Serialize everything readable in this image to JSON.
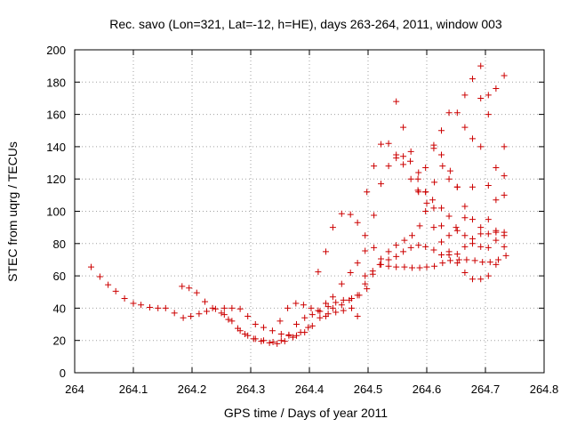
{
  "chart_data": {
    "type": "scatter",
    "title": "Rec. savo (Lon=321, Lat=-12, h=HE), days 263-264, 2011, window 003",
    "xlabel": "GPS time / Days of year 2011",
    "ylabel": "STEC from uqrg / TECUs",
    "xlim": [
      264,
      264.8
    ],
    "ylim": [
      0,
      200
    ],
    "grid": true,
    "marker": "+",
    "color": "#cc0000",
    "xticks": [
      264,
      264.1,
      264.2,
      264.3,
      264.4,
      264.5,
      264.6,
      264.7,
      264.8
    ],
    "xtick_labels": [
      "264",
      "264.1",
      "264.2",
      "264.3",
      "264.4",
      "264.5",
      "264.6",
      "264.7",
      "264.8"
    ],
    "yticks": [
      0,
      20,
      40,
      60,
      80,
      100,
      120,
      140,
      160,
      180,
      200
    ],
    "ytick_labels": [
      "0",
      "20",
      "40",
      "60",
      "80",
      "100",
      "120",
      "140",
      "160",
      "180",
      "200"
    ],
    "points": [
      [
        264.028,
        65.5
      ],
      [
        264.043,
        59.5
      ],
      [
        264.057,
        54.5
      ],
      [
        264.07,
        50.5
      ],
      [
        264.085,
        46
      ],
      [
        264.1,
        43
      ],
      [
        264.113,
        42
      ],
      [
        264.128,
        40.5
      ],
      [
        264.142,
        40
      ],
      [
        264.155,
        40
      ],
      [
        264.17,
        37
      ],
      [
        264.183,
        53.5
      ],
      [
        264.195,
        52.5
      ],
      [
        264.208,
        49.5
      ],
      [
        264.222,
        44
      ],
      [
        264.235,
        40
      ],
      [
        264.25,
        37
      ],
      [
        264.262,
        33
      ],
      [
        264.278,
        27.5
      ],
      [
        264.29,
        24
      ],
      [
        264.305,
        21
      ],
      [
        264.318,
        19.5
      ],
      [
        264.332,
        18.5
      ],
      [
        264.345,
        18
      ],
      [
        264.358,
        19.5
      ],
      [
        264.372,
        22
      ],
      [
        264.385,
        25
      ],
      [
        264.398,
        28
      ],
      [
        264.185,
        34
      ],
      [
        264.198,
        35
      ],
      [
        264.212,
        36.5
      ],
      [
        264.225,
        38
      ],
      [
        264.24,
        39.5
      ],
      [
        264.255,
        40
      ],
      [
        264.268,
        40
      ],
      [
        264.282,
        39.5
      ],
      [
        264.295,
        35
      ],
      [
        264.308,
        30
      ],
      [
        264.322,
        28
      ],
      [
        264.337,
        26
      ],
      [
        264.352,
        24
      ],
      [
        264.365,
        23.5
      ],
      [
        264.378,
        23
      ],
      [
        264.392,
        25
      ],
      [
        264.405,
        29
      ],
      [
        264.418,
        34
      ],
      [
        264.432,
        36.5
      ],
      [
        264.445,
        37.5
      ],
      [
        264.458,
        38.5
      ],
      [
        264.472,
        40
      ],
      [
        264.255,
        36
      ],
      [
        264.268,
        32
      ],
      [
        264.282,
        26
      ],
      [
        264.295,
        23
      ],
      [
        264.308,
        21
      ],
      [
        264.322,
        20
      ],
      [
        264.338,
        19
      ],
      [
        264.352,
        20
      ],
      [
        264.365,
        23
      ],
      [
        264.378,
        30
      ],
      [
        264.392,
        34
      ],
      [
        264.405,
        36
      ],
      [
        264.418,
        38
      ],
      [
        264.432,
        41
      ],
      [
        264.445,
        43.5
      ],
      [
        264.458,
        45
      ],
      [
        264.472,
        46
      ],
      [
        264.485,
        48
      ],
      [
        264.498,
        52
      ],
      [
        264.35,
        32
      ],
      [
        264.363,
        40
      ],
      [
        264.377,
        43
      ],
      [
        264.39,
        42
      ],
      [
        264.403,
        40
      ],
      [
        264.415,
        62.5
      ],
      [
        264.428,
        75
      ],
      [
        264.44,
        90
      ],
      [
        264.455,
        98.5
      ],
      [
        264.47,
        98
      ],
      [
        264.482,
        93
      ],
      [
        264.495,
        85
      ],
      [
        264.51,
        77.5
      ],
      [
        264.522,
        67
      ],
      [
        264.535,
        66
      ],
      [
        264.548,
        65.5
      ],
      [
        264.562,
        65.5
      ],
      [
        264.575,
        65
      ],
      [
        264.588,
        65
      ],
      [
        264.6,
        65.5
      ],
      [
        264.613,
        66
      ],
      [
        264.627,
        68
      ],
      [
        264.64,
        69.5
      ],
      [
        264.655,
        70
      ],
      [
        264.668,
        70
      ],
      [
        264.682,
        69.5
      ],
      [
        264.695,
        68.5
      ],
      [
        264.708,
        68.5
      ],
      [
        264.722,
        70
      ],
      [
        264.735,
        72.5
      ],
      [
        264.415,
        38.5
      ],
      [
        264.428,
        43
      ],
      [
        264.44,
        47
      ],
      [
        264.455,
        55
      ],
      [
        264.47,
        62
      ],
      [
        264.482,
        68
      ],
      [
        264.495,
        75.5
      ],
      [
        264.51,
        97.5
      ],
      [
        264.522,
        117
      ],
      [
        264.535,
        128
      ],
      [
        264.548,
        133
      ],
      [
        264.56,
        134
      ],
      [
        264.572,
        131
      ],
      [
        264.585,
        120
      ],
      [
        264.598,
        112
      ],
      [
        264.61,
        107
      ],
      [
        264.625,
        102
      ],
      [
        264.638,
        97
      ],
      [
        264.65,
        90
      ],
      [
        264.665,
        85
      ],
      [
        264.678,
        80
      ],
      [
        264.692,
        78
      ],
      [
        264.705,
        77.5
      ],
      [
        264.718,
        82
      ],
      [
        264.732,
        85
      ],
      [
        264.428,
        35
      ],
      [
        264.44,
        40
      ],
      [
        264.455,
        42
      ],
      [
        264.468,
        45
      ],
      [
        264.482,
        48
      ],
      [
        264.495,
        55
      ],
      [
        264.508,
        61
      ],
      [
        264.522,
        70.5
      ],
      [
        264.535,
        75
      ],
      [
        264.548,
        79
      ],
      [
        264.562,
        82
      ],
      [
        264.575,
        85
      ],
      [
        264.588,
        91
      ],
      [
        264.6,
        105
      ],
      [
        264.613,
        118
      ],
      [
        264.627,
        128
      ],
      [
        264.64,
        125
      ],
      [
        264.652,
        115
      ],
      [
        264.665,
        103
      ],
      [
        264.678,
        95
      ],
      [
        264.692,
        90
      ],
      [
        264.705,
        86
      ],
      [
        264.718,
        87
      ],
      [
        264.732,
        87
      ],
      [
        264.482,
        35
      ],
      [
        264.495,
        60
      ],
      [
        264.508,
        63
      ],
      [
        264.52,
        67
      ],
      [
        264.535,
        70
      ],
      [
        264.548,
        72
      ],
      [
        264.56,
        75
      ],
      [
        264.573,
        77.5
      ],
      [
        264.586,
        79
      ],
      [
        264.598,
        78
      ],
      [
        264.612,
        76
      ],
      [
        264.625,
        73
      ],
      [
        264.638,
        73
      ],
      [
        264.652,
        73.5
      ],
      [
        264.665,
        78
      ],
      [
        264.678,
        83
      ],
      [
        264.692,
        86
      ],
      [
        264.705,
        95
      ],
      [
        264.718,
        107
      ],
      [
        264.732,
        122
      ],
      [
        264.498,
        112
      ],
      [
        264.51,
        128
      ],
      [
        264.522,
        141.5
      ],
      [
        264.535,
        142
      ],
      [
        264.548,
        135
      ],
      [
        264.56,
        129
      ],
      [
        264.573,
        120
      ],
      [
        264.586,
        112
      ],
      [
        264.598,
        100
      ],
      [
        264.612,
        90
      ],
      [
        264.625,
        81
      ],
      [
        264.638,
        75
      ],
      [
        264.652,
        68
      ],
      [
        264.665,
        62
      ],
      [
        264.678,
        58
      ],
      [
        264.692,
        58
      ],
      [
        264.705,
        60
      ],
      [
        264.718,
        67
      ],
      [
        264.732,
        78
      ],
      [
        264.548,
        168
      ],
      [
        264.56,
        152
      ],
      [
        264.573,
        137
      ],
      [
        264.586,
        124
      ],
      [
        264.598,
        112
      ],
      [
        264.612,
        102
      ],
      [
        264.625,
        91
      ],
      [
        264.638,
        85
      ],
      [
        264.652,
        88
      ],
      [
        264.665,
        96
      ],
      [
        264.678,
        115
      ],
      [
        264.692,
        140
      ],
      [
        264.705,
        160
      ],
      [
        264.718,
        176
      ],
      [
        264.732,
        184
      ],
      [
        264.585,
        113
      ],
      [
        264.598,
        127
      ],
      [
        264.612,
        139
      ],
      [
        264.625,
        150
      ],
      [
        264.638,
        161
      ],
      [
        264.652,
        161
      ],
      [
        264.665,
        152
      ],
      [
        264.678,
        145
      ],
      [
        264.692,
        190
      ],
      [
        264.705,
        172
      ],
      [
        264.718,
        127
      ],
      [
        264.732,
        110
      ],
      [
        264.612,
        141
      ],
      [
        264.625,
        135
      ],
      [
        264.638,
        120
      ],
      [
        264.652,
        115
      ],
      [
        264.665,
        172
      ],
      [
        264.678,
        182
      ],
      [
        264.692,
        170
      ],
      [
        264.705,
        116
      ],
      [
        264.718,
        88
      ],
      [
        264.732,
        140
      ]
    ]
  }
}
